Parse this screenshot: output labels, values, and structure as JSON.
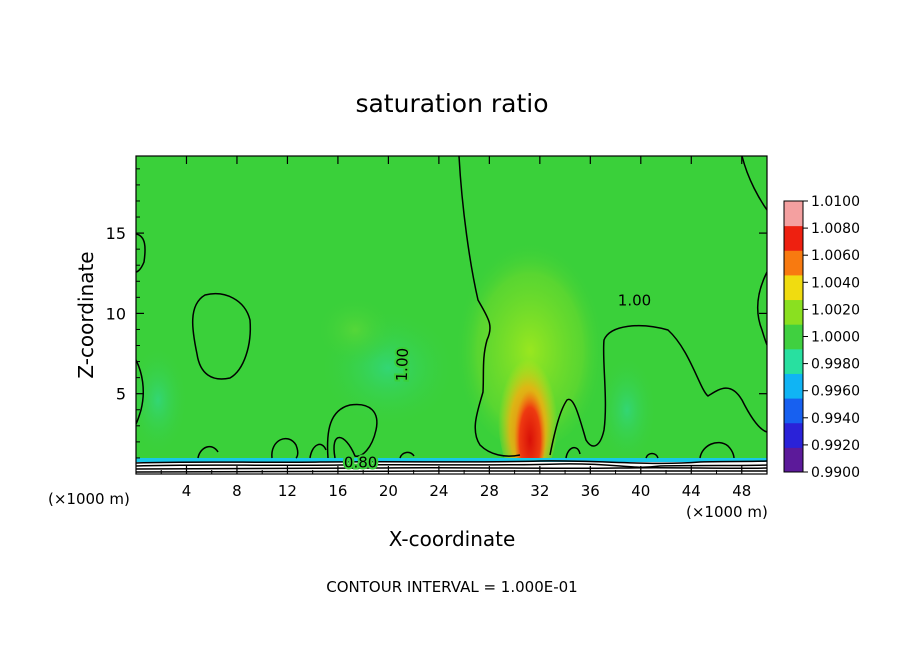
{
  "chart_data": {
    "type": "heatmap",
    "title": "saturation ratio",
    "xlabel": "X-coordinate",
    "ylabel": "Z-coordinate",
    "x_unit": "(×1000 m)",
    "x_unit_right": "(×1000 m)",
    "footer": "CONTOUR INTERVAL = 1.000E-01",
    "xlim": [
      0,
      50
    ],
    "ylim": [
      0,
      19.8
    ],
    "x_ticks": [
      4,
      8,
      12,
      16,
      20,
      24,
      28,
      32,
      36,
      40,
      44,
      48
    ],
    "y_ticks": [
      5,
      10,
      15
    ],
    "colorbar": {
      "levels": [
        "0.9900",
        "0.9920",
        "0.9940",
        "0.9960",
        "0.9980",
        "1.0000",
        "1.0020",
        "1.0040",
        "1.0060",
        "1.0080",
        "1.0100"
      ],
      "colors": [
        "#5c1a9a",
        "#2a22d8",
        "#1760f0",
        "#10b4f4",
        "#28e0a0",
        "#40d040",
        "#8ae020",
        "#f0dc10",
        "#f87a10",
        "#ee2010",
        "#f4a0a0"
      ]
    },
    "contour_labels": [
      {
        "text": "1.00",
        "x": 21.5,
        "y": 6.8
      },
      {
        "text": "1.00",
        "x": 39.5,
        "y": 10.5
      },
      {
        "text": "0.80",
        "x": 17.8,
        "y": 0.4
      }
    ],
    "field": {
      "background": "#3ad03a",
      "features": [
        {
          "desc": "high saturation core",
          "x": 30.8,
          "y": 2.8,
          "sx": 1.1,
          "sy": 3.0,
          "color": "#e01810"
        },
        {
          "desc": "orange halo",
          "x": 30.8,
          "y": 3.6,
          "sx": 1.6,
          "sy": 4.2,
          "color": "#f89010"
        },
        {
          "desc": "yellow-green plume",
          "x": 31.0,
          "y": 7.0,
          "sx": 3.2,
          "sy": 7.5,
          "color": "#8ee020"
        }
      ]
    }
  }
}
